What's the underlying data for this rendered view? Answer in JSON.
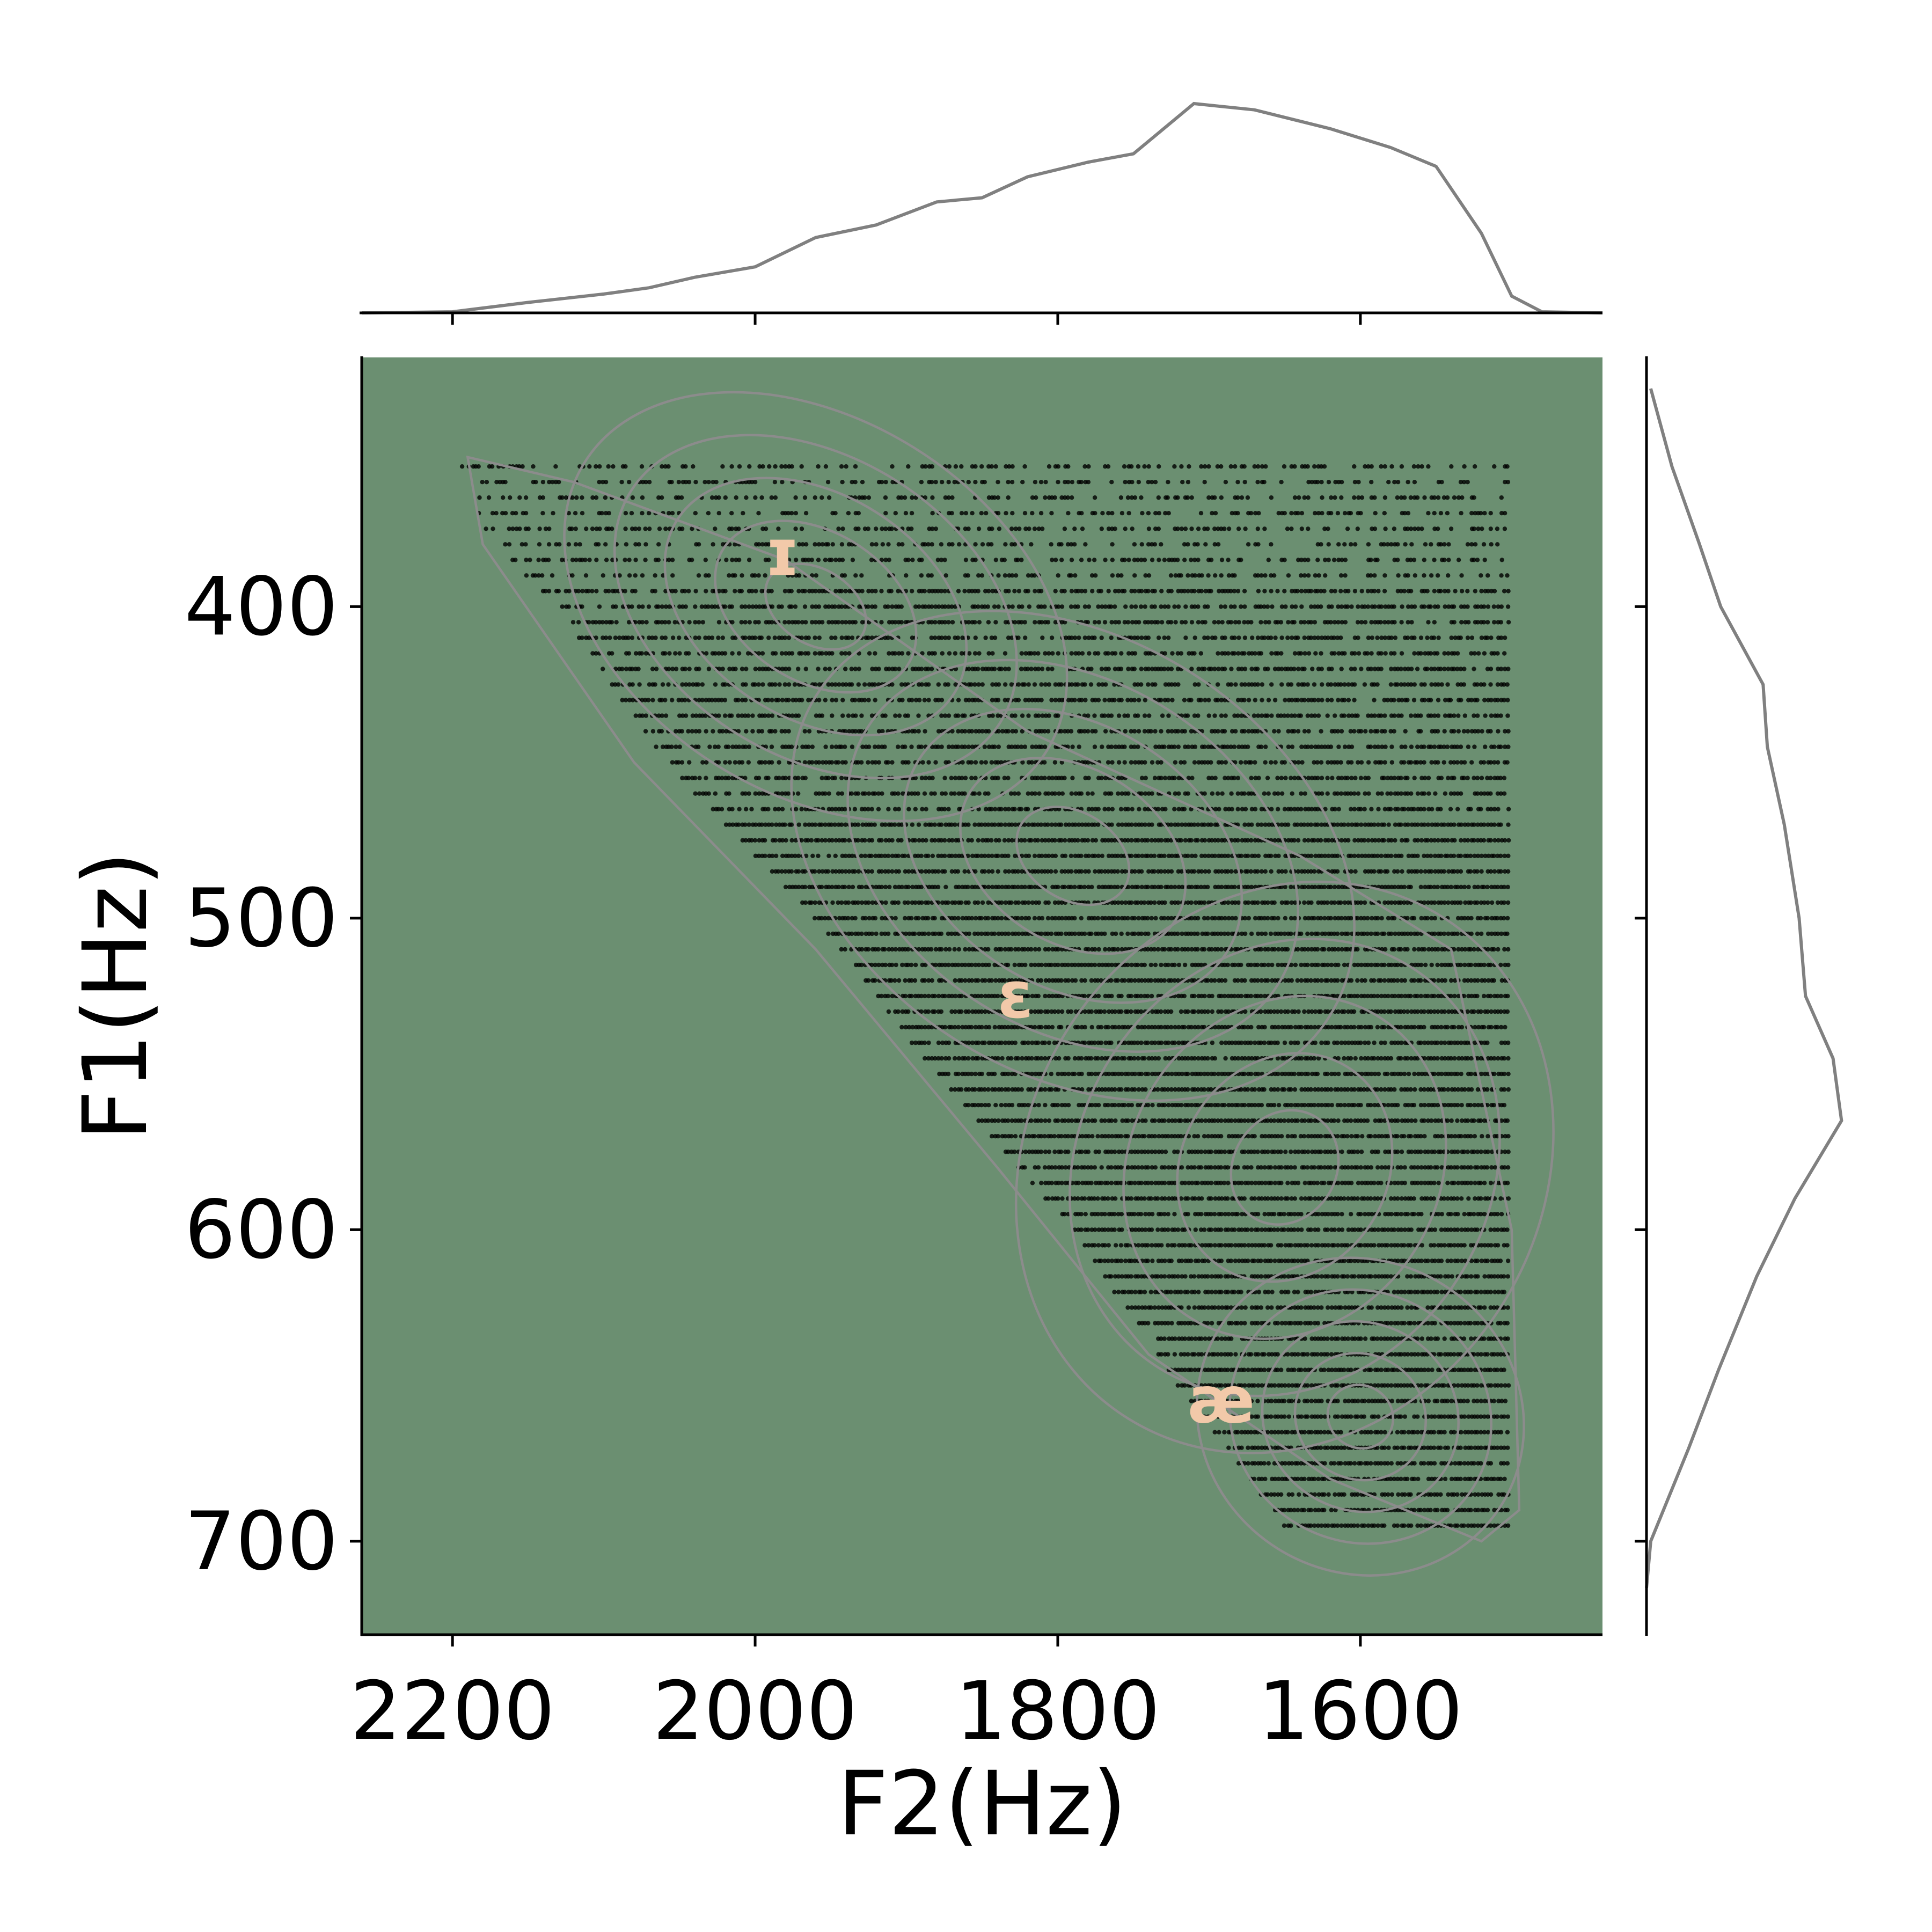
{
  "chart_data": {
    "type": "scatter",
    "xlabel": "F2(Hz)",
    "ylabel": "F1(Hz)",
    "xlim": [
      2260,
      1440
    ],
    "ylim": [
      730,
      320
    ],
    "x_inverted": true,
    "y_inverted": true,
    "xticks": [
      2200,
      2000,
      1800,
      1600
    ],
    "yticks": [
      400,
      500,
      600,
      700
    ],
    "plot_background": "#6b8f71",
    "point_color": "#000000",
    "contour_color": "#8c8c8c",
    "marginal_color": "#808080",
    "label_color": "#f2c9a9",
    "has_marginal_kde": true,
    "has_kde_contours": true,
    "grid": false,
    "vowel_labels": [
      {
        "text": "ɪ",
        "F2": 1982,
        "F1": 383
      },
      {
        "text": "ɛ",
        "F2": 1828,
        "F1": 525
      },
      {
        "text": "æ",
        "F2": 1692,
        "F1": 655
      }
    ],
    "scatter_region": {
      "F1_min": 355,
      "F1_max": 695,
      "F1_step": 5,
      "F2_max_edge": [
        [
          355,
          2195
        ],
        [
          380,
          2175
        ],
        [
          400,
          2130
        ],
        [
          450,
          2060
        ],
        [
          500,
          1960
        ],
        [
          550,
          1880
        ],
        [
          600,
          1790
        ],
        [
          650,
          1720
        ],
        [
          695,
          1650
        ]
      ],
      "F2_min_edge": 1502
    },
    "kde_F2": [
      [
        2260,
        0
      ],
      [
        2200,
        0.005
      ],
      [
        2150,
        0.05
      ],
      [
        2100,
        0.09
      ],
      [
        2070,
        0.12
      ],
      [
        2040,
        0.17
      ],
      [
        2000,
        0.22
      ],
      [
        1960,
        0.36
      ],
      [
        1920,
        0.42
      ],
      [
        1880,
        0.53
      ],
      [
        1850,
        0.55
      ],
      [
        1820,
        0.65
      ],
      [
        1780,
        0.72
      ],
      [
        1750,
        0.76
      ],
      [
        1710,
        1.0
      ],
      [
        1670,
        0.97
      ],
      [
        1620,
        0.88
      ],
      [
        1580,
        0.79
      ],
      [
        1550,
        0.7
      ],
      [
        1520,
        0.38
      ],
      [
        1500,
        0.08
      ],
      [
        1480,
        0.005
      ],
      [
        1440,
        0
      ]
    ],
    "kde_F1": [
      [
        330,
        0.02
      ],
      [
        355,
        0.12
      ],
      [
        380,
        0.25
      ],
      [
        400,
        0.35
      ],
      [
        425,
        0.55
      ],
      [
        445,
        0.57
      ],
      [
        470,
        0.65
      ],
      [
        500,
        0.72
      ],
      [
        525,
        0.75
      ],
      [
        545,
        0.88
      ],
      [
        565,
        0.92
      ],
      [
        590,
        0.7
      ],
      [
        615,
        0.52
      ],
      [
        645,
        0.34
      ],
      [
        670,
        0.2
      ],
      [
        700,
        0.02
      ],
      [
        715,
        0
      ]
    ]
  }
}
